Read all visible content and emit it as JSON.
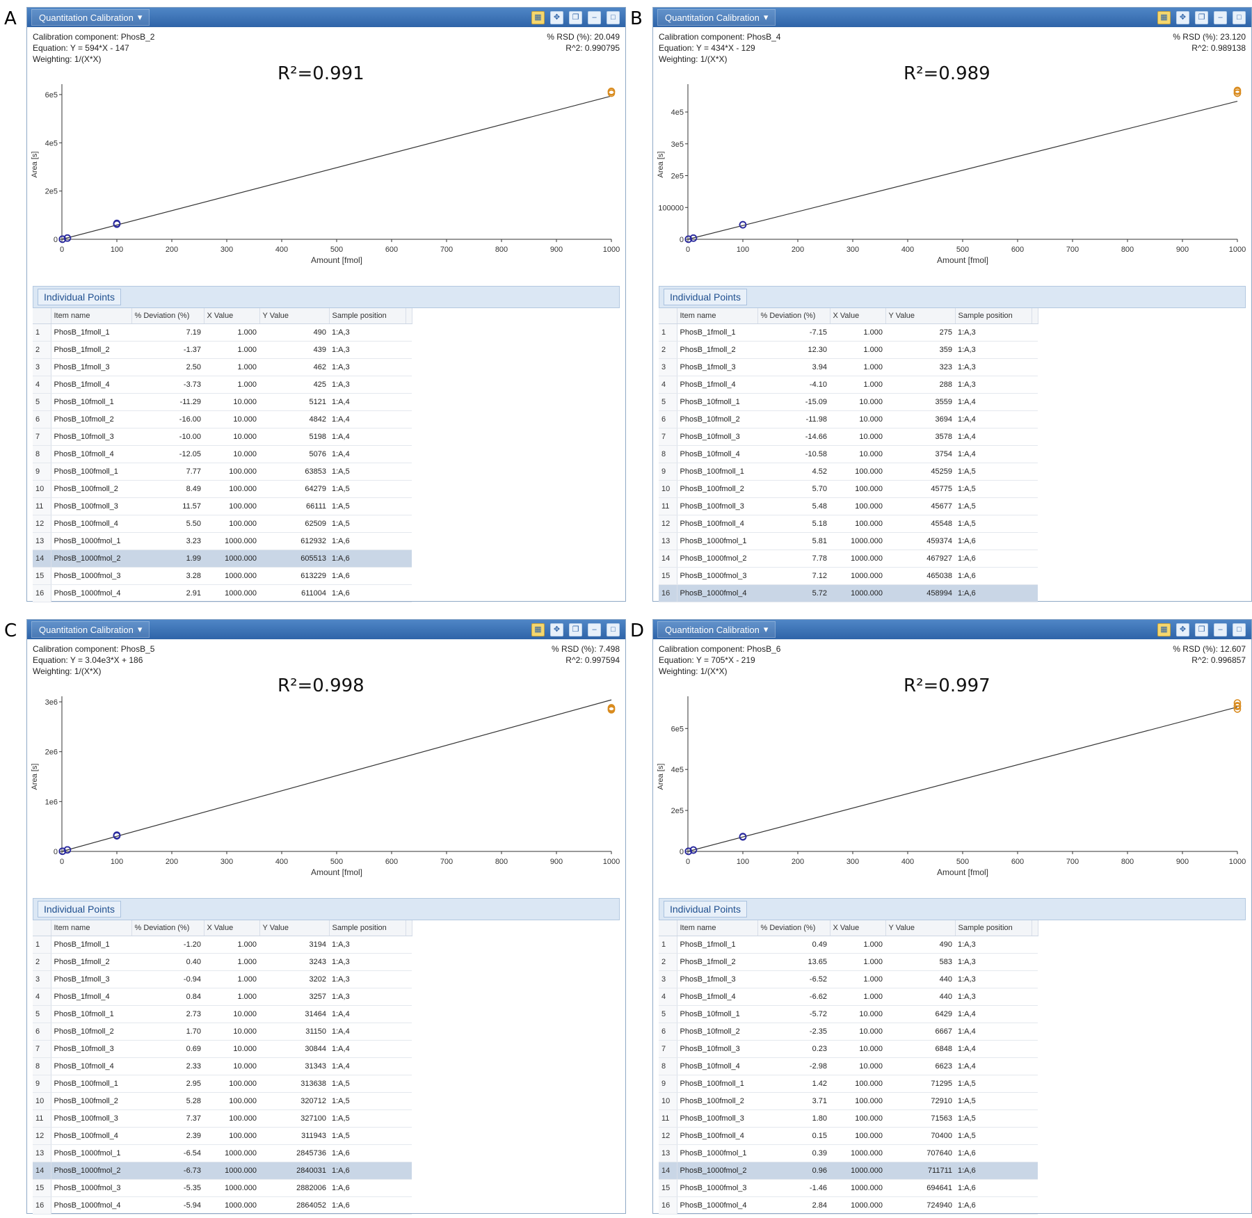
{
  "window": {
    "title_button": "Quantitation Calibration",
    "table_section": "Individual Points",
    "columns": [
      "Item name",
      "% Deviation (%)",
      "X Value",
      "Y Value",
      "Sample position"
    ],
    "x_axis_label": "Amount [fmol]",
    "y_axis_label": "Area [s]",
    "weighting": "Weighting: 1/(X*X)"
  },
  "chart_data": [
    {
      "panel": "A",
      "type": "scatter",
      "component": "Calibration component: PhosB_2",
      "equation": "Equation: Y = 594*X - 147",
      "rsd": "% RSD (%): 20.049",
      "r2_info": "R^2: 0.990795",
      "r2_label": "R²=0.991",
      "slope": 594,
      "intercept": -147,
      "xlim": [
        0,
        1000
      ],
      "ylim": [
        0,
        620000
      ],
      "yticks": [
        0,
        200000,
        400000,
        600000
      ],
      "ytick_labels": [
        "0",
        "2e5",
        "4e5",
        "6e5"
      ],
      "selected_row": 14,
      "rows": [
        [
          "PhosB_1fmoll_1",
          "7.19",
          "1.000",
          "490",
          "1:A,3"
        ],
        [
          "PhosB_1fmoll_2",
          "-1.37",
          "1.000",
          "439",
          "1:A,3"
        ],
        [
          "PhosB_1fmoll_3",
          "2.50",
          "1.000",
          "462",
          "1:A,3"
        ],
        [
          "PhosB_1fmoll_4",
          "-3.73",
          "1.000",
          "425",
          "1:A,3"
        ],
        [
          "PhosB_10fmoll_1",
          "-11.29",
          "10.000",
          "5121",
          "1:A,4"
        ],
        [
          "PhosB_10fmoll_2",
          "-16.00",
          "10.000",
          "4842",
          "1:A,4"
        ],
        [
          "PhosB_10fmoll_3",
          "-10.00",
          "10.000",
          "5198",
          "1:A,4"
        ],
        [
          "PhosB_10fmoll_4",
          "-12.05",
          "10.000",
          "5076",
          "1:A,4"
        ],
        [
          "PhosB_100fmoll_1",
          "7.77",
          "100.000",
          "63853",
          "1:A,5"
        ],
        [
          "PhosB_100fmoll_2",
          "8.49",
          "100.000",
          "64279",
          "1:A,5"
        ],
        [
          "PhosB_100fmoll_3",
          "11.57",
          "100.000",
          "66111",
          "1:A,5"
        ],
        [
          "PhosB_100fmoll_4",
          "5.50",
          "100.000",
          "62509",
          "1:A,5"
        ],
        [
          "PhosB_1000fmol_1",
          "3.23",
          "1000.000",
          "612932",
          "1:A,6"
        ],
        [
          "PhosB_1000fmol_2",
          "1.99",
          "1000.000",
          "605513",
          "1:A,6"
        ],
        [
          "PhosB_1000fmol_3",
          "3.28",
          "1000.000",
          "613229",
          "1:A,6"
        ],
        [
          "PhosB_1000fmol_4",
          "2.91",
          "1000.000",
          "611004",
          "1:A,6"
        ]
      ]
    },
    {
      "panel": "B",
      "type": "scatter",
      "component": "Calibration component: PhosB_4",
      "equation": "Equation: Y = 434*X - 129",
      "rsd": "% RSD (%): 23.120",
      "r2_info": "R^2: 0.989138",
      "r2_label": "R²=0.989",
      "slope": 434,
      "intercept": -129,
      "xlim": [
        0,
        1000
      ],
      "ylim": [
        0,
        470000
      ],
      "yticks": [
        0,
        100000,
        200000,
        300000,
        400000
      ],
      "ytick_labels": [
        "0",
        "100000",
        "2e5",
        "3e5",
        "4e5"
      ],
      "selected_row": 16,
      "rows": [
        [
          "PhosB_1fmoll_1",
          "-7.15",
          "1.000",
          "275",
          "1:A,3"
        ],
        [
          "PhosB_1fmoll_2",
          "12.30",
          "1.000",
          "359",
          "1:A,3"
        ],
        [
          "PhosB_1fmoll_3",
          "3.94",
          "1.000",
          "323",
          "1:A,3"
        ],
        [
          "PhosB_1fmoll_4",
          "-4.10",
          "1.000",
          "288",
          "1:A,3"
        ],
        [
          "PhosB_10fmoll_1",
          "-15.09",
          "10.000",
          "3559",
          "1:A,4"
        ],
        [
          "PhosB_10fmoll_2",
          "-11.98",
          "10.000",
          "3694",
          "1:A,4"
        ],
        [
          "PhosB_10fmoll_3",
          "-14.66",
          "10.000",
          "3578",
          "1:A,4"
        ],
        [
          "PhosB_10fmoll_4",
          "-10.58",
          "10.000",
          "3754",
          "1:A,4"
        ],
        [
          "PhosB_100fmoll_1",
          "4.52",
          "100.000",
          "45259",
          "1:A,5"
        ],
        [
          "PhosB_100fmoll_2",
          "5.70",
          "100.000",
          "45775",
          "1:A,5"
        ],
        [
          "PhosB_100fmoll_3",
          "5.48",
          "100.000",
          "45677",
          "1:A,5"
        ],
        [
          "PhosB_100fmoll_4",
          "5.18",
          "100.000",
          "45548",
          "1:A,5"
        ],
        [
          "PhosB_1000fmol_1",
          "5.81",
          "1000.000",
          "459374",
          "1:A,6"
        ],
        [
          "PhosB_1000fmol_2",
          "7.78",
          "1000.000",
          "467927",
          "1:A,6"
        ],
        [
          "PhosB_1000fmol_3",
          "7.12",
          "1000.000",
          "465038",
          "1:A,6"
        ],
        [
          "PhosB_1000fmol_4",
          "5.72",
          "1000.000",
          "458994",
          "1:A,6"
        ]
      ]
    },
    {
      "panel": "C",
      "type": "scatter",
      "component": "Calibration component: PhosB_5",
      "equation": "Equation: Y = 3.04e3*X + 186",
      "rsd": "% RSD (%): 7.498",
      "r2_info": "R^2: 0.997594",
      "r2_label": "R²=0.998",
      "slope": 3040,
      "intercept": 186,
      "xlim": [
        0,
        1000
      ],
      "ylim": [
        0,
        3000000
      ],
      "yticks": [
        0,
        1000000,
        2000000,
        3000000
      ],
      "ytick_labels": [
        "0",
        "1e6",
        "2e6",
        "3e6"
      ],
      "selected_row": 14,
      "rows": [
        [
          "PhosB_1fmoll_1",
          "-1.20",
          "1.000",
          "3194",
          "1:A,3"
        ],
        [
          "PhosB_1fmoll_2",
          "0.40",
          "1.000",
          "3243",
          "1:A,3"
        ],
        [
          "PhosB_1fmoll_3",
          "-0.94",
          "1.000",
          "3202",
          "1:A,3"
        ],
        [
          "PhosB_1fmoll_4",
          "0.84",
          "1.000",
          "3257",
          "1:A,3"
        ],
        [
          "PhosB_10fmoll_1",
          "2.73",
          "10.000",
          "31464",
          "1:A,4"
        ],
        [
          "PhosB_10fmoll_2",
          "1.70",
          "10.000",
          "31150",
          "1:A,4"
        ],
        [
          "PhosB_10fmoll_3",
          "0.69",
          "10.000",
          "30844",
          "1:A,4"
        ],
        [
          "PhosB_10fmoll_4",
          "2.33",
          "10.000",
          "31343",
          "1:A,4"
        ],
        [
          "PhosB_100fmoll_1",
          "2.95",
          "100.000",
          "313638",
          "1:A,5"
        ],
        [
          "PhosB_100fmoll_2",
          "5.28",
          "100.000",
          "320712",
          "1:A,5"
        ],
        [
          "PhosB_100fmoll_3",
          "7.37",
          "100.000",
          "327100",
          "1:A,5"
        ],
        [
          "PhosB_100fmoll_4",
          "2.39",
          "100.000",
          "311943",
          "1:A,5"
        ],
        [
          "PhosB_1000fmol_1",
          "-6.54",
          "1000.000",
          "2845736",
          "1:A,6"
        ],
        [
          "PhosB_1000fmol_2",
          "-6.73",
          "1000.000",
          "2840031",
          "1:A,6"
        ],
        [
          "PhosB_1000fmol_3",
          "-5.35",
          "1000.000",
          "2882006",
          "1:A,6"
        ],
        [
          "PhosB_1000fmol_4",
          "-5.94",
          "1000.000",
          "2864052",
          "1:A,6"
        ]
      ]
    },
    {
      "panel": "D",
      "type": "scatter",
      "component": "Calibration component: PhosB_6",
      "equation": "Equation: Y = 705*X - 219",
      "rsd": "% RSD (%): 12.607",
      "r2_info": "R^2: 0.996857",
      "r2_label": "R²=0.997",
      "slope": 705,
      "intercept": -219,
      "xlim": [
        0,
        1000
      ],
      "ylim": [
        0,
        730000
      ],
      "yticks": [
        0,
        200000,
        400000,
        600000
      ],
      "ytick_labels": [
        "0",
        "2e5",
        "4e5",
        "6e5"
      ],
      "selected_row": 14,
      "rows": [
        [
          "PhosB_1fmoll_1",
          "0.49",
          "1.000",
          "490",
          "1:A,3"
        ],
        [
          "PhosB_1fmoll_2",
          "13.65",
          "1.000",
          "583",
          "1:A,3"
        ],
        [
          "PhosB_1fmoll_3",
          "-6.52",
          "1.000",
          "440",
          "1:A,3"
        ],
        [
          "PhosB_1fmoll_4",
          "-6.62",
          "1.000",
          "440",
          "1:A,3"
        ],
        [
          "PhosB_10fmoll_1",
          "-5.72",
          "10.000",
          "6429",
          "1:A,4"
        ],
        [
          "PhosB_10fmoll_2",
          "-2.35",
          "10.000",
          "6667",
          "1:A,4"
        ],
        [
          "PhosB_10fmoll_3",
          "0.23",
          "10.000",
          "6848",
          "1:A,4"
        ],
        [
          "PhosB_10fmoll_4",
          "-2.98",
          "10.000",
          "6623",
          "1:A,4"
        ],
        [
          "PhosB_100fmoll_1",
          "1.42",
          "100.000",
          "71295",
          "1:A,5"
        ],
        [
          "PhosB_100fmoll_2",
          "3.71",
          "100.000",
          "72910",
          "1:A,5"
        ],
        [
          "PhosB_100fmoll_3",
          "1.80",
          "100.000",
          "71563",
          "1:A,5"
        ],
        [
          "PhosB_100fmoll_4",
          "0.15",
          "100.000",
          "70400",
          "1:A,5"
        ],
        [
          "PhosB_1000fmol_1",
          "0.39",
          "1000.000",
          "707640",
          "1:A,6"
        ],
        [
          "PhosB_1000fmol_2",
          "0.96",
          "1000.000",
          "711711",
          "1:A,6"
        ],
        [
          "PhosB_1000fmol_3",
          "-1.46",
          "1000.000",
          "694641",
          "1:A,6"
        ],
        [
          "PhosB_1000fmol_4",
          "2.84",
          "1000.000",
          "724940",
          "1:A,6"
        ]
      ]
    }
  ]
}
